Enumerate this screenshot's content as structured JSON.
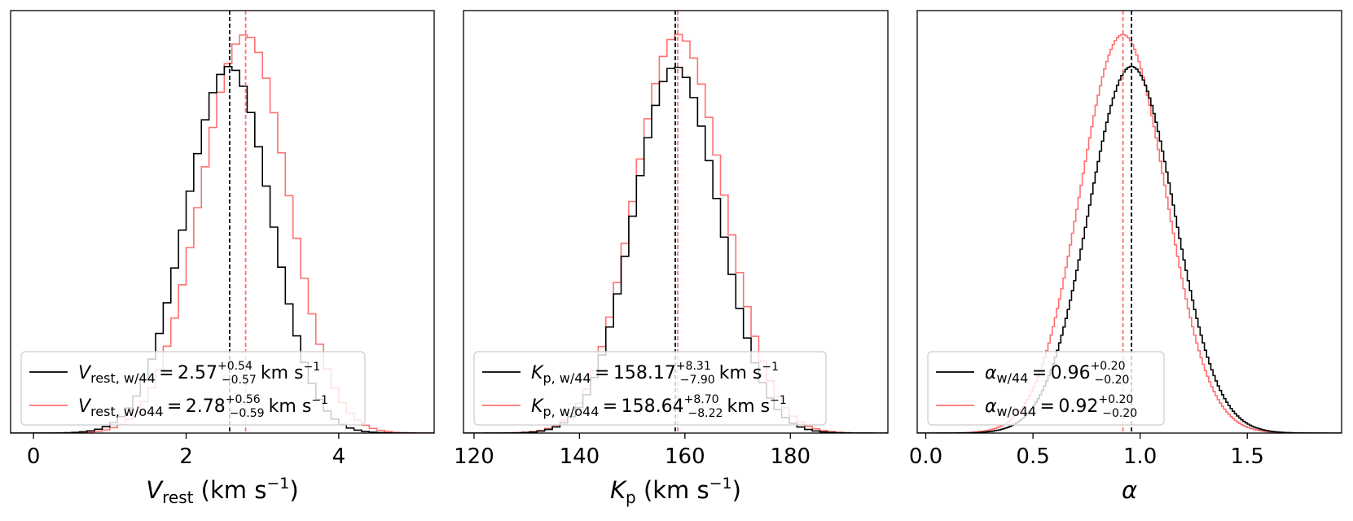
{
  "chart_data": [
    {
      "type": "step-histogram",
      "xlabel": {
        "main": "V",
        "sub": "rest",
        "unit": "(km s",
        "unit_sup": "−1",
        "unit_close": ")"
      },
      "ylabel": "",
      "xlim": [
        -0.3,
        5.25
      ],
      "x_ticks": [
        0,
        2,
        4
      ],
      "x_tick_labels": [
        "0",
        "2",
        "4"
      ],
      "series": [
        {
          "name": "w/44",
          "color": "#000000",
          "center": 2.57,
          "sigma_lo": 0.57,
          "sigma_hi": 0.54,
          "peak": 0.92,
          "bin": 0.1,
          "legend": {
            "sym": "V",
            "sub": "rest, w/44",
            "value": "2.57",
            "plus": "+0.54",
            "minus": "−0.57",
            "unit": "km s",
            "unit_sup": "−1"
          }
        },
        {
          "name": "w/o44",
          "color": "#ff7070",
          "center": 2.78,
          "sigma_lo": 0.59,
          "sigma_hi": 0.56,
          "peak": 1.0,
          "bin": 0.1,
          "legend": {
            "sym": "V",
            "sub": "rest, w/o44",
            "value": "2.78",
            "plus": "+0.56",
            "minus": "−0.59",
            "unit": "km s",
            "unit_sup": "−1"
          }
        }
      ]
    },
    {
      "type": "step-histogram",
      "xlabel": {
        "main": "K",
        "sub": "p",
        "unit": "(km s",
        "unit_sup": "−1",
        "unit_close": ")"
      },
      "ylabel": "",
      "xlim": [
        118,
        198.5
      ],
      "x_ticks": [
        120,
        140,
        160,
        180
      ],
      "x_tick_labels": [
        "120",
        "140",
        "160",
        "180"
      ],
      "series": [
        {
          "name": "w/44",
          "color": "#000000",
          "center": 158.17,
          "sigma_lo": 7.9,
          "sigma_hi": 8.31,
          "peak": 0.92,
          "bin": 1.45,
          "legend": {
            "sym": "K",
            "sub": "p, w/44",
            "value": "158.17",
            "plus": "+8.31",
            "minus": "−7.90",
            "unit": "km s",
            "unit_sup": "−1"
          }
        },
        {
          "name": "w/o44",
          "color": "#ff7070",
          "center": 158.64,
          "sigma_lo": 8.22,
          "sigma_hi": 8.7,
          "peak": 1.0,
          "bin": 1.45,
          "legend": {
            "sym": "K",
            "sub": "p, w/o44",
            "value": "158.64",
            "plus": "+8.70",
            "minus": "−8.22",
            "unit": "km s",
            "unit_sup": "−1"
          }
        }
      ]
    },
    {
      "type": "step-histogram",
      "xlabel": {
        "main": "α",
        "sub": "",
        "unit": "",
        "unit_sup": "",
        "unit_close": ""
      },
      "ylabel": "",
      "xlim": [
        -0.04,
        1.94
      ],
      "x_ticks": [
        0.0,
        0.5,
        1.0,
        1.5
      ],
      "x_tick_labels": [
        "0.0",
        "0.5",
        "1.0",
        "1.5"
      ],
      "series": [
        {
          "name": "w/44",
          "color": "#000000",
          "center": 0.96,
          "sigma_lo": 0.2,
          "sigma_hi": 0.2,
          "peak": 0.92,
          "bin": 0.01,
          "legend": {
            "sym": "α",
            "sub": "w/44",
            "value": "0.96",
            "plus": "+0.20",
            "minus": "−0.20",
            "unit": "",
            "unit_sup": ""
          }
        },
        {
          "name": "w/o44",
          "color": "#ff7070",
          "center": 0.92,
          "sigma_lo": 0.2,
          "sigma_hi": 0.2,
          "peak": 1.0,
          "bin": 0.01,
          "legend": {
            "sym": "α",
            "sub": "w/o44",
            "value": "0.92",
            "plus": "+0.20",
            "minus": "−0.20",
            "unit": "",
            "unit_sup": ""
          }
        }
      ]
    }
  ]
}
